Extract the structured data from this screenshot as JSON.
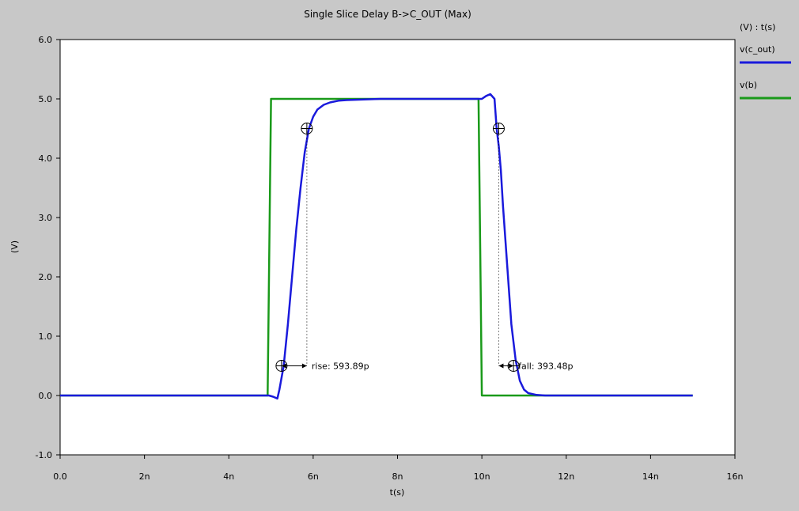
{
  "title": "Single Slice Delay B->C_OUT (Max)",
  "colors": {
    "background": "#c8c8c8",
    "plot_bg": "#ffffff",
    "c_out": "#1a1adc",
    "b": "#1a9a1a"
  },
  "chart_data": {
    "type": "line",
    "title": "Single Slice Delay B->C_OUT (Max)",
    "xlabel": "t(s)",
    "ylabel": "(V)",
    "legend_header": "(V) : t(s)",
    "legend_position": "right",
    "xlim": [
      0,
      16
    ],
    "ylim": [
      -1,
      6
    ],
    "x_ticks": [
      0,
      2,
      4,
      6,
      8,
      10,
      12,
      14,
      16
    ],
    "x_tick_labels": [
      "0.0",
      "2n",
      "4n",
      "6n",
      "8n",
      "10n",
      "12n",
      "14n",
      "16n"
    ],
    "y_ticks": [
      -1,
      0,
      1,
      2,
      3,
      4,
      5,
      6
    ],
    "y_tick_labels": [
      "-1.0",
      "0.0",
      "1.0",
      "2.0",
      "3.0",
      "4.0",
      "5.0",
      "6.0"
    ],
    "grid": false,
    "series": [
      {
        "name": "v(c_out)",
        "color": "#1a1adc",
        "x": [
          0,
          4.95,
          5.05,
          5.15,
          5.2,
          5.3,
          5.4,
          5.5,
          5.6,
          5.7,
          5.8,
          5.9,
          6.0,
          6.1,
          6.25,
          6.4,
          6.6,
          6.8,
          7.2,
          7.6,
          8,
          9,
          9.9,
          10.0,
          10.1,
          10.2,
          10.3,
          10.35,
          10.4,
          10.45,
          10.5,
          10.6,
          10.7,
          10.8,
          10.9,
          11.0,
          11.1,
          11.3,
          11.5,
          13,
          15
        ],
        "y": [
          0,
          0,
          -0.02,
          -0.05,
          0.1,
          0.5,
          1.2,
          2.0,
          2.8,
          3.5,
          4.1,
          4.5,
          4.7,
          4.82,
          4.9,
          4.94,
          4.97,
          4.98,
          4.99,
          5.0,
          5.0,
          5.0,
          5.0,
          5.0,
          5.05,
          5.08,
          5.0,
          4.5,
          4.2,
          3.8,
          3.2,
          2.2,
          1.2,
          0.6,
          0.25,
          0.1,
          0.04,
          0.01,
          0,
          0,
          0
        ]
      },
      {
        "name": "v(b)",
        "color": "#1a9a1a",
        "x": [
          0,
          4.92,
          5.0,
          9.92,
          10.0,
          15
        ],
        "y": [
          0,
          0,
          5,
          5,
          0,
          0
        ]
      }
    ],
    "annotations": [
      {
        "label": "rise: 593.89p",
        "start": [
          5.25,
          0.5
        ],
        "end": [
          5.85,
          4.5
        ]
      },
      {
        "label": "fall: 393.48p",
        "start": [
          10.4,
          4.5
        ],
        "end": [
          10.75,
          0.5
        ]
      }
    ]
  }
}
